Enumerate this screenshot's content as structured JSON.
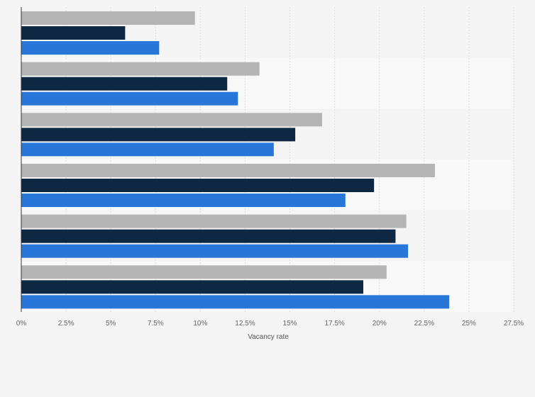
{
  "chart_data": {
    "type": "bar",
    "orientation": "horizontal",
    "categories": [
      "",
      "",
      "",
      "",
      "",
      ""
    ],
    "series": [
      {
        "values": [
          9.7,
          13.3,
          16.8,
          23.1,
          21.5,
          20.4
        ]
      },
      {
        "values": [
          5.8,
          11.5,
          15.3,
          19.7,
          20.9,
          19.1
        ]
      },
      {
        "values": [
          7.7,
          12.1,
          14.1,
          18.1,
          21.6,
          23.9
        ]
      }
    ],
    "xlabel": "Vacancy rate",
    "xlim": [
      0,
      27.5
    ],
    "xticks": [
      0,
      2.5,
      5,
      7.5,
      10,
      12.5,
      15,
      17.5,
      20,
      22.5,
      25,
      27.5
    ],
    "xtick_labels": [
      "0%",
      "2.5%",
      "5%",
      "7.5%",
      "10%",
      "12.5%",
      "15%",
      "17.5%",
      "20%",
      "22.5%",
      "25%",
      "27.5%"
    ],
    "grid": true,
    "legend": false,
    "colors": {
      "series": [
        "#b4b4b4",
        "#0e2742",
        "#2877d8"
      ],
      "band_a": "#f4f4f4",
      "band_b": "#f8f8f8",
      "grid": "#dcdcdc",
      "axis": "#333333"
    }
  }
}
